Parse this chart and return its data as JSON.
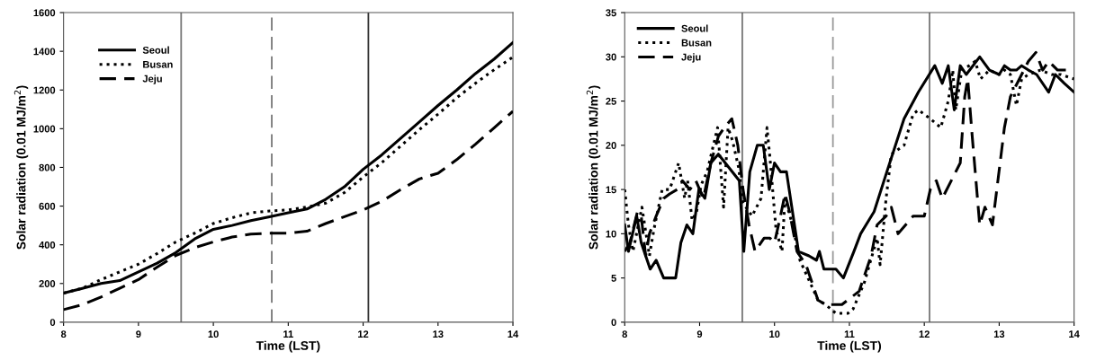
{
  "chart_data": [
    {
      "type": "line",
      "xlabel": "Time (LST)",
      "ylabel": "Solar radiation (0.01 MJ/m$^{2}$)",
      "xlim": [
        8,
        14
      ],
      "xticks": [
        8,
        9,
        10,
        11,
        12,
        13,
        14
      ],
      "ylim": [
        0,
        1600
      ],
      "yticks": [
        0,
        200,
        400,
        600,
        800,
        1000,
        1200,
        1400,
        1600
      ],
      "grid": false,
      "legend": "top left",
      "marker": "none",
      "x": [
        8.0,
        8.25,
        8.5,
        8.75,
        9.0,
        9.25,
        9.5,
        9.75,
        10.0,
        10.25,
        10.5,
        10.75,
        11.0,
        11.25,
        11.5,
        11.75,
        12.0,
        12.25,
        12.5,
        12.75,
        13.0,
        13.25,
        13.5,
        13.75,
        14.0
      ],
      "series": [
        {
          "name": "Seoul",
          "color": "#000000",
          "line_style": "solid",
          "values": [
            150,
            175,
            200,
            215,
            260,
            305,
            360,
            430,
            480,
            500,
            525,
            545,
            565,
            585,
            635,
            700,
            790,
            865,
            950,
            1035,
            1120,
            1200,
            1285,
            1360,
            1445
          ]
        },
        {
          "name": "Busan",
          "color": "#000000",
          "line_style": "dotted",
          "values": [
            150,
            175,
            220,
            260,
            300,
            355,
            415,
            460,
            510,
            540,
            565,
            575,
            580,
            595,
            615,
            670,
            750,
            825,
            910,
            995,
            1075,
            1160,
            1235,
            1305,
            1370
          ]
        },
        {
          "name": "Jeju",
          "color": "#000000",
          "line_style": "dashed",
          "values": [
            65,
            90,
            130,
            175,
            220,
            285,
            345,
            385,
            415,
            440,
            455,
            460,
            460,
            470,
            510,
            545,
            580,
            625,
            685,
            740,
            770,
            840,
            920,
            1005,
            1090
          ]
        }
      ],
      "ref_lines": [
        {
          "axis": "x",
          "value": 9.57,
          "color": "#777777",
          "line_style": "solid"
        },
        {
          "axis": "x",
          "value": 10.78,
          "color": "#777777",
          "line_style": "dashed"
        },
        {
          "axis": "x",
          "value": 12.07,
          "color": "#333333",
          "line_style": "solid"
        }
      ]
    },
    {
      "type": "line",
      "xlabel": "Time (LST)",
      "ylabel": "Solar radiation (0.01 MJ/m$^{2}$)",
      "xlim": [
        8,
        14
      ],
      "xticks": [
        8,
        9,
        10,
        11,
        12,
        13,
        14
      ],
      "ylim": [
        0,
        35
      ],
      "yticks": [
        0,
        5,
        10,
        15,
        20,
        25,
        30,
        35
      ],
      "grid": false,
      "legend": "top left",
      "marker": "none",
      "series": [
        {
          "name": "Seoul",
          "color": "#000000",
          "line_style": "solid",
          "x": [
            8.0,
            8.05,
            8.16,
            8.22,
            8.34,
            8.42,
            8.52,
            8.68,
            8.75,
            8.83,
            8.91,
            8.99,
            9.07,
            9.15,
            9.25,
            9.53,
            9.59,
            9.67,
            9.77,
            9.85,
            9.93,
            10.0,
            10.08,
            10.16,
            10.24,
            10.32,
            10.46,
            10.56,
            10.6,
            10.66,
            10.82,
            10.92,
            11.06,
            11.15,
            11.33,
            11.5,
            11.73,
            11.92,
            12.14,
            12.24,
            12.32,
            12.4,
            12.48,
            12.56,
            12.74,
            12.87,
            13.0,
            13.07,
            13.15,
            13.23,
            13.3,
            13.39,
            13.5,
            13.66,
            13.75,
            13.87,
            14.0
          ],
          "values": [
            11,
            8,
            12,
            9,
            6,
            7,
            5,
            5,
            9,
            11,
            10,
            15,
            14,
            18,
            19,
            16,
            8,
            17,
            20,
            20,
            15,
            18,
            17,
            17,
            12.5,
            8,
            7.5,
            7,
            8,
            6,
            6,
            5,
            8,
            10,
            12.5,
            17,
            23,
            26,
            29,
            27,
            29,
            24,
            29,
            28,
            30,
            28.5,
            28,
            29,
            28.5,
            28.5,
            29,
            28.5,
            28,
            26,
            28,
            27,
            26
          ]
        },
        {
          "name": "Busan",
          "color": "#000000",
          "line_style": "dotted",
          "x": [
            8.0,
            8.05,
            8.11,
            8.23,
            8.33,
            8.39,
            8.5,
            8.6,
            8.72,
            8.8,
            8.84,
            8.9,
            8.96,
            9.02,
            9.1,
            9.24,
            9.32,
            9.38,
            9.44,
            9.52,
            9.58,
            9.7,
            9.82,
            9.9,
            9.94,
            10.02,
            10.1,
            10.14,
            10.24,
            10.34,
            10.5,
            10.58,
            10.68,
            10.82,
            10.98,
            11.05,
            11.2,
            11.37,
            11.41,
            11.49,
            11.56,
            11.73,
            11.85,
            11.92,
            12.08,
            12.22,
            12.32,
            12.38,
            12.42,
            12.5,
            12.6,
            12.68,
            12.75,
            12.87,
            13.0,
            13.07,
            13.15,
            13.23,
            13.3,
            13.39,
            13.55,
            13.7,
            13.82,
            14.0
          ],
          "values": [
            15,
            11,
            8,
            13,
            7.5,
            10.5,
            15,
            15,
            18,
            14,
            16,
            11.5,
            12.5,
            15.5,
            17,
            22,
            13,
            22,
            20.5,
            17.5,
            13.5,
            12,
            14,
            22,
            18.5,
            10.5,
            8,
            14,
            11,
            7,
            4,
            2.5,
            2,
            1,
            1,
            1.5,
            4.5,
            9.5,
            6.5,
            14,
            19,
            20,
            23.5,
            24,
            23,
            22,
            25,
            28.5,
            24,
            28.5,
            29,
            29.5,
            27.5,
            28.5,
            28,
            28.5,
            28,
            24.5,
            27.5,
            28,
            28.5,
            28,
            28,
            27.5
          ]
        },
        {
          "name": "Jeju",
          "color": "#000000",
          "line_style": "dashed",
          "x": [
            8.0,
            8.07,
            8.17,
            8.22,
            8.28,
            8.33,
            8.42,
            8.52,
            8.6,
            8.7,
            8.77,
            8.87,
            8.95,
            9.05,
            9.15,
            9.25,
            9.33,
            9.43,
            9.51,
            9.58,
            9.66,
            9.74,
            9.86,
            9.94,
            10.0,
            10.08,
            10.14,
            10.2,
            10.3,
            10.42,
            10.58,
            10.68,
            10.9,
            11.13,
            11.29,
            11.37,
            11.49,
            11.56,
            11.65,
            11.85,
            12.0,
            12.08,
            12.16,
            12.24,
            12.48,
            12.54,
            12.58,
            12.64,
            12.74,
            12.81,
            12.91,
            13.07,
            13.15,
            13.3,
            13.39,
            13.49,
            13.58,
            13.66,
            13.78,
            13.9,
            14.0
          ],
          "values": [
            8,
            9,
            12.5,
            12,
            7.5,
            10,
            12,
            14,
            14.5,
            15,
            16,
            15,
            16,
            14,
            18,
            21,
            22,
            23,
            20,
            15,
            11,
            8,
            9.5,
            9.5,
            9,
            12,
            14.5,
            12.5,
            8,
            6.5,
            2.5,
            2,
            2,
            3.5,
            7.5,
            11,
            12,
            13,
            10,
            12,
            12,
            15,
            16,
            14,
            18,
            25.5,
            27.5,
            21,
            11,
            13,
            11,
            22,
            25.5,
            28,
            29.5,
            30.5,
            28.5,
            29.5,
            28.5,
            28.5,
            28.5
          ]
        }
      ],
      "ref_lines": [
        {
          "axis": "x",
          "value": 9.57,
          "color": "#777777",
          "line_style": "solid"
        },
        {
          "axis": "x",
          "value": 10.78,
          "color": "#999999",
          "line_style": "dashed"
        },
        {
          "axis": "x",
          "value": 12.07,
          "color": "#777777",
          "line_style": "solid"
        }
      ]
    }
  ]
}
